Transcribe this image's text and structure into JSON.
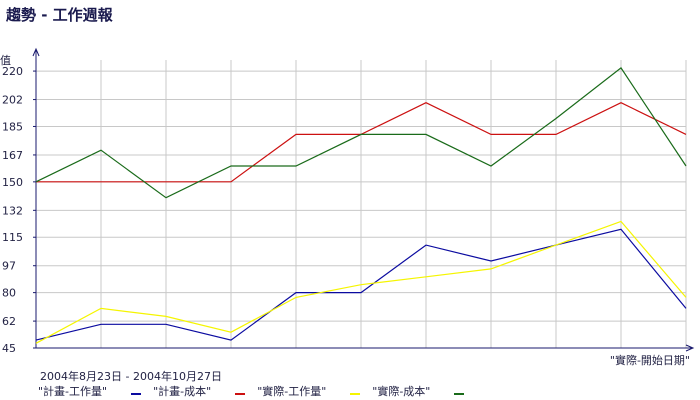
{
  "title": "趨勢 - 工作週報",
  "chart_data": {
    "type": "line",
    "title": "趨勢 - 工作週報",
    "ylabel": "值",
    "xlabel": "\"實際-開始日期\"",
    "subtitle": "2004年8月23日 - 2004年10月27日",
    "ylim": [
      45,
      227
    ],
    "yticks": [
      "45",
      "62",
      "80",
      "97",
      "115",
      "132",
      "150",
      "167",
      "185",
      "202",
      "220"
    ],
    "x": [
      0,
      1,
      2,
      3,
      4,
      5,
      6,
      7,
      8,
      9,
      10
    ],
    "grid": true,
    "legend_position": "bottom",
    "series": [
      {
        "name": "\"計畫-工作量\"",
        "color": "#0b0ba0",
        "values": [
          50,
          60,
          60,
          50,
          80,
          80,
          110,
          100,
          110,
          120,
          70
        ]
      },
      {
        "name": "\"計畫-成本\"",
        "color": "#cc1111",
        "values": [
          150,
          150,
          150,
          150,
          180,
          180,
          200,
          180,
          180,
          200,
          180
        ]
      },
      {
        "name": "\"實際-工作量\"",
        "color": "#f5f500",
        "values": [
          48,
          70,
          65,
          55,
          77,
          85,
          90,
          95,
          110,
          125,
          77
        ]
      },
      {
        "name": "\"實際-成本\"",
        "color": "#1a6b1a",
        "values": [
          150,
          170,
          140,
          160,
          160,
          180,
          180,
          160,
          190,
          222,
          160
        ]
      }
    ]
  }
}
